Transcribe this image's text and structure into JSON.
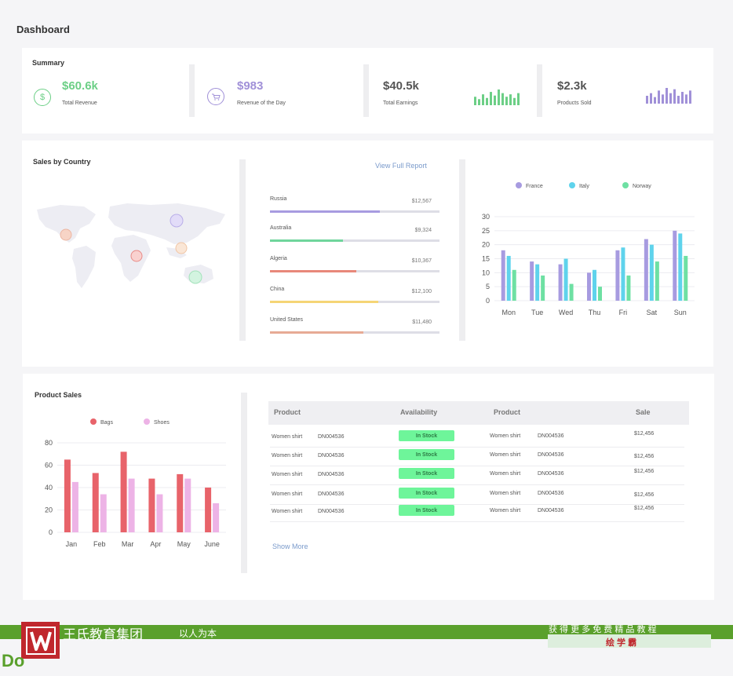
{
  "page_title": "Dashboard",
  "summary": {
    "title": "Summary",
    "cards": [
      {
        "value": "$60.6k",
        "label": "Total Revenue",
        "color": "#6ccf86",
        "icon": "dollar-icon"
      },
      {
        "value": "$983",
        "label": "Revenue of the Day",
        "color": "#a090d8",
        "icon": "cart-icon"
      },
      {
        "value": "$40.5k",
        "label": "Total Earnings",
        "color": "#555555",
        "sparkline": [
          7,
          5,
          9,
          6,
          11,
          8,
          13,
          10,
          7,
          9,
          6,
          10
        ],
        "spark_color": "#6ccf86"
      },
      {
        "value": "$2.3k",
        "label": "Products Sold",
        "color": "#555555",
        "sparkline": [
          6,
          8,
          5,
          10,
          7,
          12,
          8,
          11,
          6,
          9,
          7,
          10
        ],
        "spark_color": "#a090d8"
      }
    ]
  },
  "sales_by_country": {
    "title": "Sales by Country",
    "view_report": "View Full Report",
    "countries": [
      {
        "name": "Russia",
        "value": "$12,567",
        "progress": 0.65,
        "color": "#a79be0"
      },
      {
        "name": "Australia",
        "value": "$9,324",
        "progress": 0.43,
        "color": "#6fd59c"
      },
      {
        "name": "Algeria",
        "value": "$10,367",
        "progress": 0.51,
        "color": "#e8887a"
      },
      {
        "name": "China",
        "value": "$12,100",
        "progress": 0.64,
        "color": "#f5d576"
      },
      {
        "name": "United States",
        "value": "$11,480",
        "progress": 0.55,
        "color": "#e7aa95"
      }
    ]
  },
  "chart_data": [
    {
      "type": "bar",
      "categories": [
        "Mon",
        "Tue",
        "Wed",
        "Thu",
        "Fri",
        "Sat",
        "Sun"
      ],
      "series": [
        {
          "name": "France",
          "color": "#a79be0",
          "values": [
            18,
            14,
            13,
            10,
            18,
            22,
            25
          ]
        },
        {
          "name": "Italy",
          "color": "#5fd3ec",
          "values": [
            16,
            13,
            15,
            11,
            19,
            20,
            24
          ]
        },
        {
          "name": "Norway",
          "color": "#6ee0a3",
          "values": [
            11,
            9,
            6,
            5,
            9,
            14,
            16
          ]
        }
      ],
      "yticks": [
        0,
        5,
        10,
        15,
        20,
        25,
        30
      ],
      "ylim": [
        0,
        30
      ],
      "legend": "top",
      "grid": true
    },
    {
      "type": "bar",
      "title": "Product Sales",
      "categories": [
        "Jan",
        "Feb",
        "Mar",
        "Apr",
        "May",
        "June"
      ],
      "series": [
        {
          "name": "Bags",
          "color": "#e8636a",
          "values": [
            65,
            53,
            72,
            48,
            52,
            40
          ]
        },
        {
          "name": "Shoes",
          "color": "#edb3e6",
          "values": [
            45,
            34,
            48,
            34,
            48,
            26
          ]
        }
      ],
      "yticks": [
        0,
        20,
        40,
        60,
        80
      ],
      "ylim": [
        0,
        80
      ],
      "legend": "top",
      "grid": true
    }
  ],
  "product_table": {
    "headers": [
      "Product",
      "Availability",
      "Product",
      "Sale"
    ],
    "rows": [
      {
        "product": "Women shirt",
        "code": "DN004536",
        "status": "In Stock",
        "product2": "Women shirt",
        "code2": "DN004536",
        "sale": "$12,456"
      },
      {
        "product": "Women shirt",
        "code": "DN004536",
        "status": "In Stock",
        "product2": "Women shirt",
        "code2": "DN004536",
        "sale": "$12,456"
      },
      {
        "product": "Women shirt",
        "code": "DN004536",
        "status": "In Stock",
        "product2": "Women shirt",
        "code2": "DN004536",
        "sale": "$12,456"
      },
      {
        "product": "Women shirt",
        "code": "DN004536",
        "status": "In Stock",
        "product2": "Women shirt",
        "code2": "DN004536",
        "sale": "$12,456"
      },
      {
        "product": "Women shirt",
        "code": "DN004536",
        "status": "In Stock",
        "product2": "Women shirt",
        "code2": "DN004536",
        "sale": "$12,456"
      }
    ],
    "show_more": "Show More"
  },
  "banner": {
    "brand": "王氏教育集团",
    "slogan": "以人为本",
    "right_top": "获 得 更 多 免 费 精 品 教 程",
    "right_bottom": "绘 学 霸",
    "corner": "Do",
    "green": "#5aa02c",
    "red": "#c0272d"
  }
}
